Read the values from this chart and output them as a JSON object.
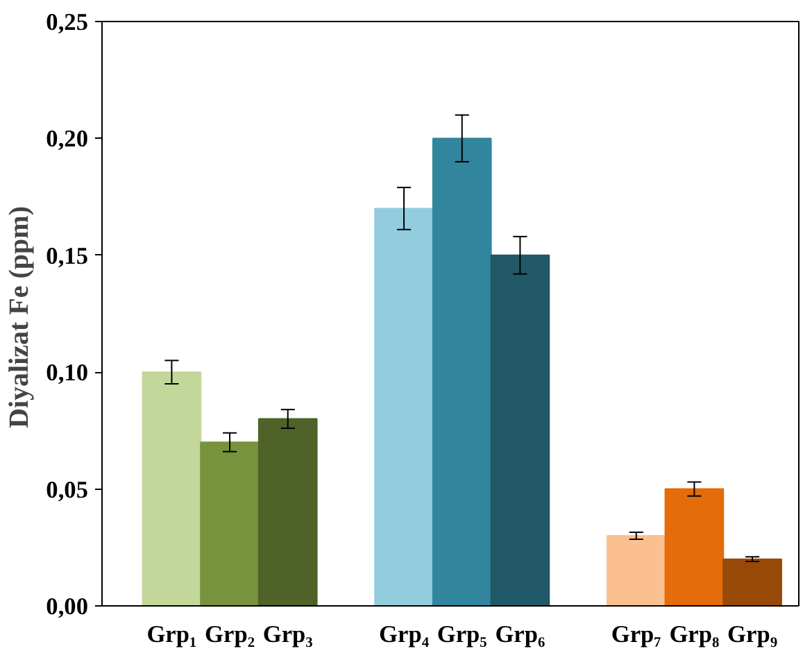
{
  "chart_data": {
    "type": "bar",
    "ylabel": "Diyalizat  Fe (ppm)",
    "categories": [
      "Grp₁",
      "Grp₂",
      "Grp₃",
      "Grp₄",
      "Grp₅",
      "Grp₆",
      "Grp₇",
      "Grp₈",
      "Grp₉"
    ],
    "values": [
      0.1,
      0.07,
      0.08,
      0.17,
      0.2,
      0.15,
      0.03,
      0.05,
      0.02
    ],
    "errors": [
      0.005,
      0.004,
      0.004,
      0.009,
      0.01,
      0.008,
      0.0015,
      0.003,
      0.001
    ],
    "colors": [
      "#c4d79b",
      "#77933c",
      "#4f6228",
      "#93cddd",
      "#31859c",
      "#215968",
      "#fac090",
      "#e46c0a",
      "#984807"
    ],
    "ylim": [
      0,
      0.25
    ],
    "yticks": [
      {
        "value": 0,
        "label": "0,00"
      },
      {
        "value": 0.05,
        "label": "0,05"
      },
      {
        "value": 0.1,
        "label": "0,10"
      },
      {
        "value": 0.15,
        "label": "0,15"
      },
      {
        "value": 0.2,
        "label": "0,20"
      },
      {
        "value": 0.25,
        "label": "0,25"
      }
    ],
    "grid": false
  }
}
